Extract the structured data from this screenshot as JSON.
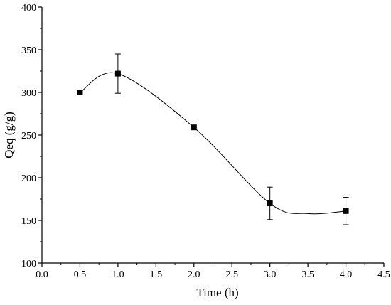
{
  "chart_data": {
    "type": "scatter",
    "title": "",
    "xlabel": "Time (h)",
    "ylabel": "Qeq (g/g)",
    "xlim": [
      0.0,
      4.5
    ],
    "ylim": [
      100,
      400
    ],
    "x_ticks": [
      0.0,
      0.5,
      1.0,
      1.5,
      2.0,
      2.5,
      3.0,
      3.5,
      4.0,
      4.5
    ],
    "x_tick_labels": [
      "0.0",
      "0.5",
      "1.0",
      "1.5",
      "2.0",
      "2.5",
      "3.0",
      "3.5",
      "4.0",
      "4.5"
    ],
    "y_ticks": [
      100,
      150,
      200,
      250,
      300,
      350,
      400
    ],
    "y_tick_labels": [
      "100",
      "150",
      "200",
      "250",
      "300",
      "350",
      "400"
    ],
    "grid": false,
    "legend": "none",
    "marker": "square",
    "series": [
      {
        "x": [
          0.5,
          1.0,
          2.0,
          3.0,
          4.0
        ],
        "y": [
          300,
          322,
          259,
          170,
          161
        ],
        "error": [
          null,
          23,
          null,
          19,
          16
        ]
      }
    ],
    "fit_curve": {
      "style": "smooth",
      "x": [
        0.5,
        1.0,
        2.0,
        3.0,
        3.5,
        4.0
      ],
      "y": [
        300,
        322,
        259,
        170,
        158,
        161
      ]
    },
    "colors": {
      "marker": "#000000",
      "line": "#000000",
      "axis": "#000000"
    }
  }
}
